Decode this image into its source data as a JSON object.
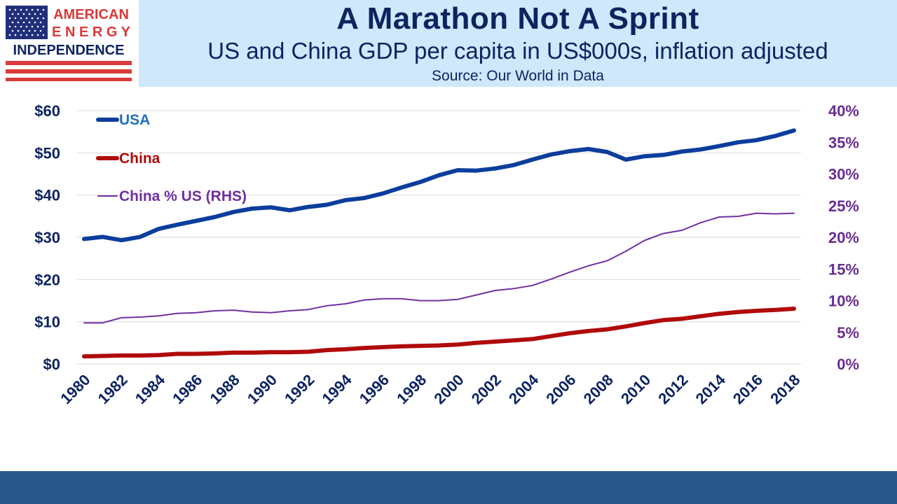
{
  "logo": {
    "line1": "AMERICAN",
    "line2": "E N E R G Y",
    "line3": "INDEPENDENCE",
    "icon": "us-flag-icon"
  },
  "header": {
    "title": "A Marathon Not A Sprint",
    "subtitle": "US and China GDP per capita in US$000s, inflation adjusted",
    "source": "Source: Our World in Data"
  },
  "colors": {
    "usa": "#0b3d9c",
    "china": "#b00a0a",
    "ratio": "#7030a0",
    "header_bg": "#cfe8fb",
    "footer": "#28578a",
    "grid": "#d9d9d9"
  },
  "chart_data": {
    "type": "line",
    "x": [
      1980,
      1981,
      1982,
      1983,
      1984,
      1985,
      1986,
      1987,
      1988,
      1989,
      1990,
      1991,
      1992,
      1993,
      1994,
      1995,
      1996,
      1997,
      1998,
      1999,
      2000,
      2001,
      2002,
      2003,
      2004,
      2005,
      2006,
      2007,
      2008,
      2009,
      2010,
      2011,
      2012,
      2013,
      2014,
      2015,
      2016,
      2017,
      2018
    ],
    "x_tick_labels": [
      "1980",
      "1982",
      "1984",
      "1986",
      "1988",
      "1990",
      "1992",
      "1994",
      "1996",
      "1998",
      "2000",
      "2002",
      "2004",
      "2006",
      "2008",
      "2010",
      "2012",
      "2014",
      "2016",
      "2018"
    ],
    "left_axis": {
      "ylim": [
        0,
        60
      ],
      "tick_labels": [
        "$0",
        "$10",
        "$20",
        "$30",
        "$40",
        "$50",
        "$60"
      ]
    },
    "right_axis": {
      "ylim": [
        0,
        40
      ],
      "tick_labels": [
        "0%",
        "5%",
        "10%",
        "15%",
        "20%",
        "25%",
        "30%",
        "35%",
        "40%"
      ]
    },
    "grid": true,
    "legend_position": "top-left",
    "series": [
      {
        "name": "USA",
        "axis": "left",
        "values": [
          29.6,
          30.1,
          29.3,
          30.1,
          32.0,
          33.0,
          33.9,
          34.8,
          36.0,
          36.8,
          37.1,
          36.4,
          37.2,
          37.7,
          38.8,
          39.3,
          40.4,
          41.8,
          43.1,
          44.7,
          45.9,
          45.8,
          46.3,
          47.1,
          48.4,
          49.6,
          50.4,
          50.9,
          50.2,
          48.4,
          49.2,
          49.5,
          50.3,
          50.8,
          51.6,
          52.5,
          53.0,
          54.0,
          55.3
        ]
      },
      {
        "name": "China",
        "axis": "left",
        "values": [
          1.8,
          1.9,
          2.0,
          2.0,
          2.1,
          2.4,
          2.4,
          2.5,
          2.7,
          2.7,
          2.8,
          2.8,
          2.9,
          3.3,
          3.5,
          3.8,
          4.0,
          4.2,
          4.3,
          4.4,
          4.6,
          5.0,
          5.3,
          5.6,
          5.9,
          6.6,
          7.3,
          7.8,
          8.2,
          8.9,
          9.7,
          10.4,
          10.7,
          11.3,
          11.9,
          12.3,
          12.6,
          12.8,
          13.1
        ]
      },
      {
        "name": "China % US (RHS)",
        "axis": "right",
        "values": [
          6.5,
          6.5,
          7.3,
          7.4,
          7.6,
          8.0,
          8.1,
          8.4,
          8.5,
          8.2,
          8.1,
          8.4,
          8.6,
          9.2,
          9.5,
          10.1,
          10.3,
          10.3,
          10.0,
          10.0,
          10.2,
          10.9,
          11.6,
          11.9,
          12.4,
          13.4,
          14.5,
          15.5,
          16.3,
          17.8,
          19.5,
          20.6,
          21.1,
          22.3,
          23.2,
          23.3,
          23.8,
          23.7,
          23.8
        ]
      }
    ]
  }
}
